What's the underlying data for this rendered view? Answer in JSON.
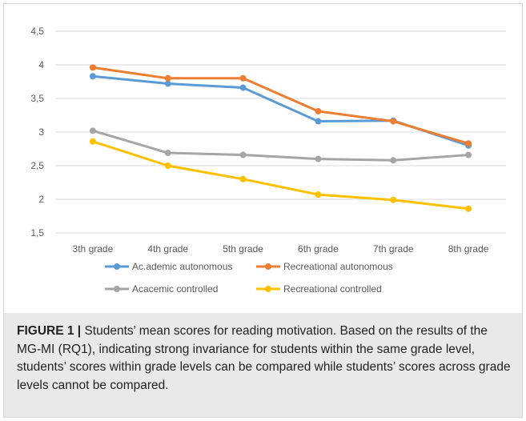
{
  "chart_data": {
    "type": "line",
    "categories": [
      "3th grade",
      "4th grade",
      "5th grade",
      "6th grade",
      "7th grade",
      "8th grade"
    ],
    "series": [
      {
        "name": "Ac.ademic autonomous",
        "color": "#5b9bd5",
        "values": [
          3.83,
          3.72,
          3.66,
          3.16,
          3.17,
          2.8
        ]
      },
      {
        "name": "Recreational autonomous",
        "color": "#ed7d31",
        "values": [
          3.96,
          3.8,
          3.8,
          3.31,
          3.16,
          2.83
        ]
      },
      {
        "name": "Acacemic controlled",
        "color": "#a5a5a5",
        "values": [
          3.02,
          2.69,
          2.66,
          2.6,
          2.58,
          2.66
        ]
      },
      {
        "name": "Recreational controlled",
        "color": "#ffc000",
        "values": [
          2.86,
          2.5,
          2.3,
          2.07,
          1.99,
          1.86
        ]
      }
    ],
    "ylim": [
      1.5,
      4.5
    ],
    "yticks": [
      "1,5",
      "2",
      "2,5",
      "3",
      "3,5",
      "4",
      "4,5"
    ],
    "ytick_values": [
      1.5,
      2,
      2.5,
      3,
      3.5,
      4,
      4.5
    ],
    "grid": true,
    "legend_position": "bottom"
  },
  "caption": {
    "label": "FIGURE 1 |",
    "text": " Students’ mean scores for reading motivation. Based on the results of the MG-MI (RQ1), indicating strong invariance for students within the same grade level, students’ scores within grade levels can be compared while students’ scores across grade levels cannot be compared."
  }
}
